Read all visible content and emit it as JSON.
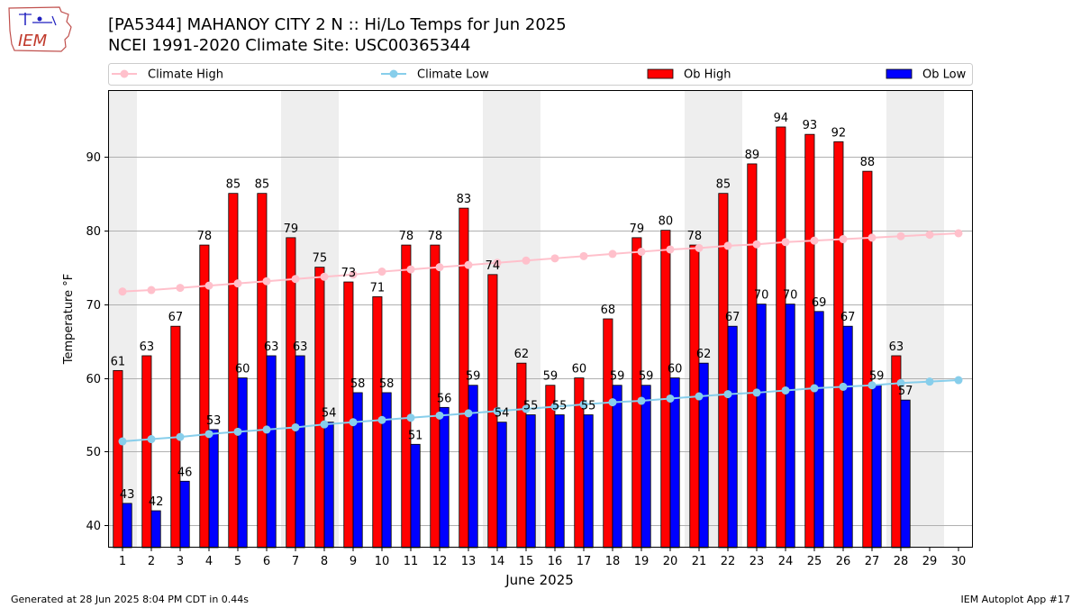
{
  "header": {
    "title_line1": "[PA5344] MAHANOY CITY 2 N :: Hi/Lo Temps for Jun 2025",
    "title_line2": "NCEI 1991-2020 Climate Site: USC00365344"
  },
  "logo": {
    "text": "IEM",
    "icon": "iowa-state-outline-logo-icon"
  },
  "footer": {
    "left": "Generated at 28 Jun 2025 8:04 PM CDT in 0.44s",
    "right": "IEM Autoplot App #17"
  },
  "colors": {
    "ob_high": "#ff0000",
    "ob_low": "#0000ff",
    "climate_high": "#ffc0cb",
    "climate_low": "#87ceeb",
    "weekend_band": "#eeeeee",
    "grid": "#b0b0b0"
  },
  "chart_data": {
    "type": "bar",
    "xlabel": "June 2025",
    "ylabel": "Temperature °F",
    "ylim": [
      37,
      99
    ],
    "yticks": [
      40,
      50,
      60,
      70,
      80,
      90
    ],
    "grid": "horizontal",
    "legend_position": "top",
    "categories": [
      "1",
      "2",
      "3",
      "4",
      "5",
      "6",
      "7",
      "8",
      "9",
      "10",
      "11",
      "12",
      "13",
      "14",
      "15",
      "16",
      "17",
      "18",
      "19",
      "20",
      "21",
      "22",
      "23",
      "24",
      "25",
      "26",
      "27",
      "28",
      "29",
      "30"
    ],
    "shaded_days": [
      1,
      7,
      8,
      14,
      15,
      21,
      22,
      28,
      29
    ],
    "series": [
      {
        "name": "Ob High",
        "kind": "bar",
        "color": "#ff0000",
        "values": [
          61,
          63,
          67,
          78,
          85,
          85,
          79,
          75,
          73,
          71,
          78,
          78,
          83,
          74,
          62,
          59,
          60,
          68,
          79,
          80,
          78,
          85,
          89,
          94,
          93,
          92,
          88,
          63,
          null,
          null
        ]
      },
      {
        "name": "Ob Low",
        "kind": "bar",
        "color": "#0000ff",
        "values": [
          43,
          42,
          46,
          53,
          60,
          63,
          63,
          54,
          58,
          58,
          51,
          56,
          59,
          54,
          55,
          55,
          55,
          59,
          59,
          60,
          62,
          67,
          70,
          70,
          69,
          67,
          59,
          57,
          null,
          null
        ]
      },
      {
        "name": "Climate High",
        "kind": "line",
        "color": "#ffc0cb",
        "values": [
          71.7,
          71.9,
          72.2,
          72.5,
          72.8,
          73.1,
          73.4,
          73.7,
          74.0,
          74.4,
          74.7,
          75.0,
          75.3,
          75.6,
          75.9,
          76.2,
          76.5,
          76.8,
          77.1,
          77.4,
          77.6,
          77.9,
          78.1,
          78.4,
          78.6,
          78.8,
          79.0,
          79.2,
          79.4,
          79.6
        ]
      },
      {
        "name": "Climate Low",
        "kind": "line",
        "color": "#87ceeb",
        "values": [
          51.4,
          51.7,
          52.0,
          52.4,
          52.7,
          53.0,
          53.3,
          53.7,
          54.0,
          54.3,
          54.6,
          54.9,
          55.2,
          55.5,
          55.8,
          56.1,
          56.4,
          56.7,
          56.9,
          57.2,
          57.5,
          57.8,
          58.0,
          58.3,
          58.6,
          58.8,
          59.0,
          59.3,
          59.5,
          59.7
        ]
      }
    ]
  }
}
